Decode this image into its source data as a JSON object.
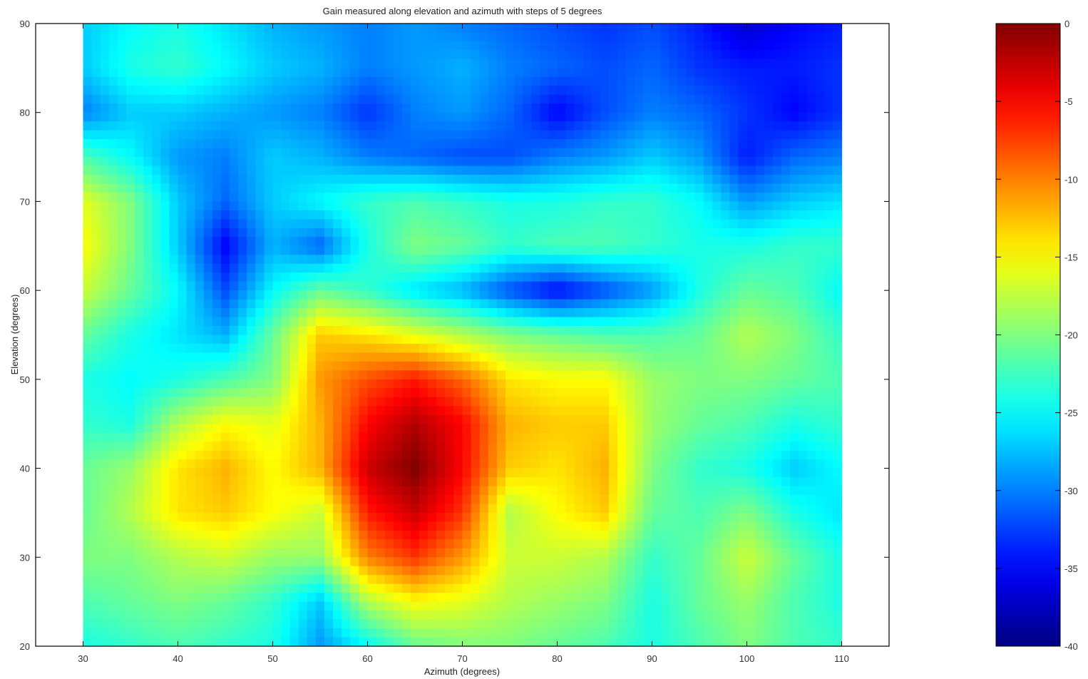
{
  "chart_data": {
    "type": "heatmap",
    "title": "Gain measured along elevation and azimuth with steps of 5  degrees",
    "xlabel": "Azimuth (degrees)",
    "ylabel": "Elevation (degrees)",
    "xlim": [
      25,
      115
    ],
    "ylim": [
      20,
      90
    ],
    "x_ticks": [
      30,
      40,
      50,
      60,
      70,
      80,
      90,
      100,
      110
    ],
    "y_ticks": [
      20,
      30,
      40,
      50,
      60,
      70,
      80,
      90
    ],
    "colormap": "jet",
    "colorbar": {
      "range": [
        -40,
        0
      ],
      "ticks": [
        0,
        -5,
        -10,
        -15,
        -20,
        -25,
        -30,
        -35,
        -40
      ]
    },
    "x": [
      30,
      35,
      40,
      45,
      50,
      55,
      60,
      65,
      70,
      75,
      80,
      85,
      90,
      95,
      100,
      105,
      110
    ],
    "y": [
      90,
      85,
      80,
      75,
      70,
      65,
      60,
      55,
      50,
      45,
      40,
      35,
      30,
      25,
      20
    ],
    "z": [
      [
        -27,
        -25,
        -24,
        -26,
        -28,
        -29,
        -30,
        -29,
        -30,
        -31,
        -32,
        -33,
        -32,
        -34,
        -37,
        -35,
        -34
      ],
      [
        -27,
        -24,
        -23,
        -25,
        -27,
        -28,
        -30,
        -29,
        -28,
        -30,
        -31,
        -32,
        -31,
        -33,
        -34,
        -34,
        -33
      ],
      [
        -30,
        -27,
        -27,
        -28,
        -29,
        -30,
        -33,
        -30,
        -29,
        -31,
        -35,
        -32,
        -30,
        -31,
        -33,
        -35,
        -33
      ],
      [
        -22,
        -25,
        -29,
        -30,
        -27,
        -28,
        -30,
        -31,
        -32,
        -32,
        -30,
        -29,
        -27,
        -29,
        -34,
        -31,
        -30
      ],
      [
        -16,
        -20,
        -27,
        -31,
        -27,
        -25,
        -23,
        -22,
        -23,
        -24,
        -24,
        -23,
        -23,
        -25,
        -29,
        -27,
        -26
      ],
      [
        -15,
        -20,
        -27,
        -35,
        -28,
        -31,
        -24,
        -20,
        -21,
        -23,
        -22,
        -22,
        -23,
        -24,
        -24,
        -23,
        -23
      ],
      [
        -17,
        -21,
        -25,
        -32,
        -25,
        -21,
        -23,
        -26,
        -28,
        -32,
        -35,
        -32,
        -29,
        -24,
        -21,
        -22,
        -25
      ],
      [
        -21,
        -24,
        -26,
        -28,
        -21,
        -13,
        -14,
        -16,
        -18,
        -20,
        -21,
        -22,
        -22,
        -21,
        -18,
        -20,
        -23
      ],
      [
        -24,
        -25,
        -24,
        -22,
        -20,
        -11,
        -8,
        -6,
        -9,
        -14,
        -15,
        -15,
        -19,
        -20,
        -20,
        -21,
        -22
      ],
      [
        -23,
        -24,
        -18,
        -15,
        -16,
        -12,
        -5,
        -2,
        -5,
        -12,
        -13,
        -13,
        -19,
        -21,
        -22,
        -24,
        -23
      ],
      [
        -21,
        -19,
        -14,
        -12,
        -15,
        -12,
        -3,
        0,
        -5,
        -13,
        -14,
        -12,
        -20,
        -23,
        -24,
        -27,
        -25
      ],
      [
        -21,
        -18,
        -14,
        -13,
        -15,
        -17,
        -6,
        -3,
        -7,
        -18,
        -15,
        -13,
        -21,
        -22,
        -20,
        -24,
        -26
      ],
      [
        -20,
        -20,
        -18,
        -17,
        -19,
        -19,
        -10,
        -7,
        -11,
        -17,
        -17,
        -18,
        -23,
        -21,
        -17,
        -21,
        -24
      ],
      [
        -22,
        -21,
        -20,
        -21,
        -23,
        -27,
        -18,
        -15,
        -16,
        -18,
        -19,
        -20,
        -24,
        -21,
        -19,
        -22,
        -24
      ],
      [
        -24,
        -23,
        -22,
        -23,
        -24,
        -29,
        -25,
        -21,
        -20,
        -20,
        -21,
        -22,
        -24,
        -22,
        -20,
        -22,
        -23
      ]
    ]
  }
}
